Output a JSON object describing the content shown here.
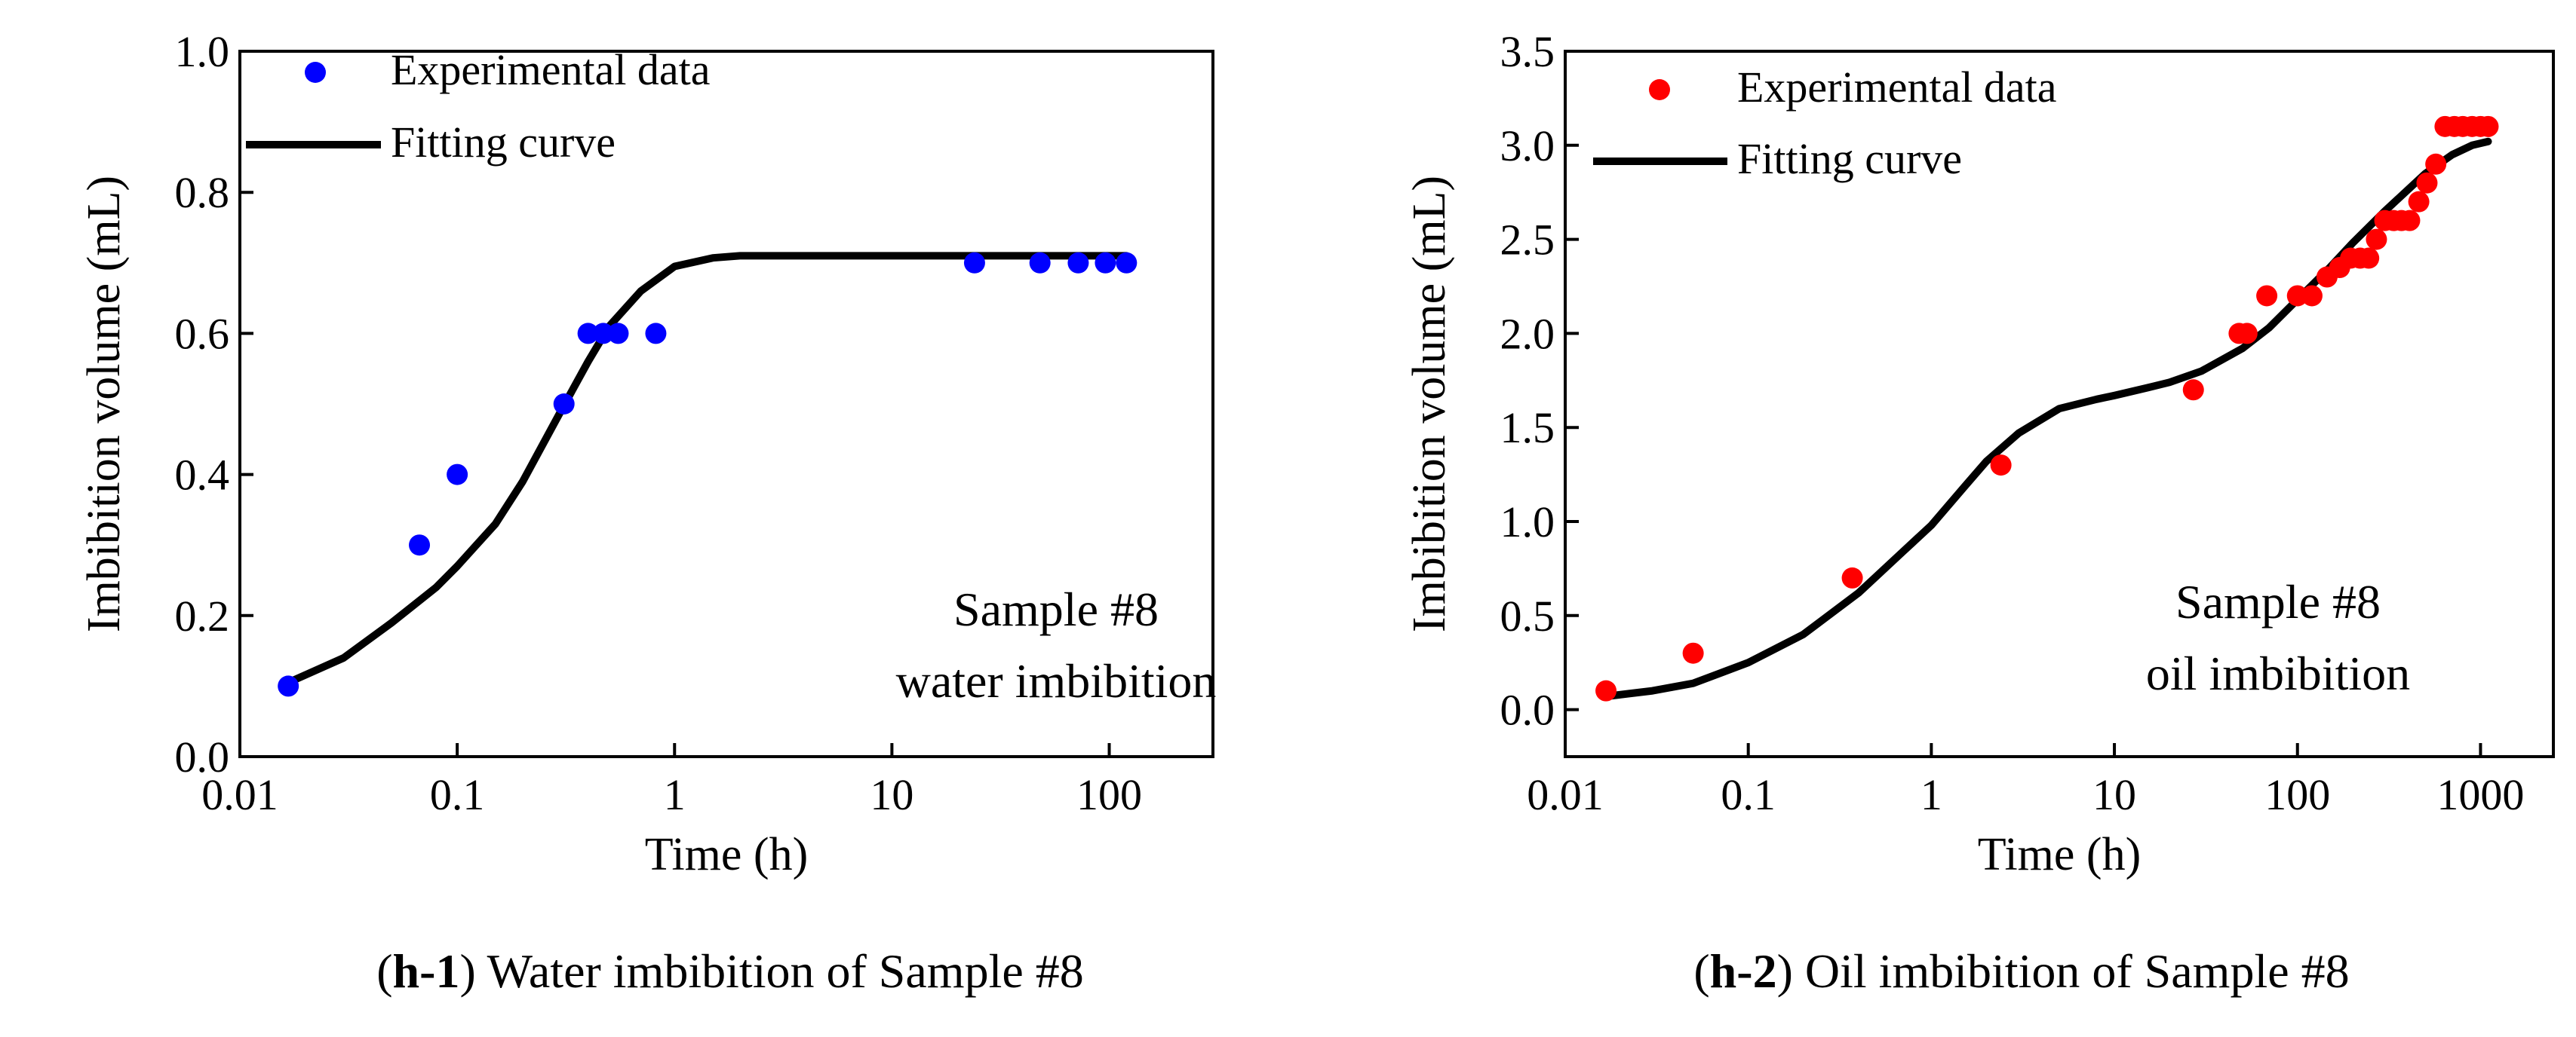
{
  "chart_data": [
    {
      "id": "h1",
      "type": "scatter",
      "caption": {
        "bold": "h-1",
        "open": "(",
        "rest": ") Water imbibition of Sample #8"
      },
      "xlabel": "Time (h)",
      "ylabel": "Imbibition volume (mL)",
      "xscale": "log",
      "xlim": [
        0.01,
        300
      ],
      "ylim": [
        0,
        1.0
      ],
      "xticks": [
        0.01,
        0.1,
        1,
        10,
        100
      ],
      "xtick_labels": [
        "0.01",
        "0.1",
        "1",
        "10",
        "100"
      ],
      "yticks": [
        0,
        0.2,
        0.4,
        0.6,
        0.8,
        1.0
      ],
      "ytick_labels": [
        "0.0",
        "0.2",
        "0.4",
        "0.6",
        "0.8",
        "1.0"
      ],
      "legend": [
        {
          "label": "Experimental data",
          "kind": "marker"
        },
        {
          "label": "Fitting curve",
          "kind": "line"
        }
      ],
      "legend_position": "top-left",
      "annotation": [
        "Sample #8",
        "water imbibition"
      ],
      "marker_color": "#0000ff",
      "line_color": "#000000",
      "series": [
        {
          "name": "Experimental data",
          "x": [
            0.0167,
            0.067,
            0.1,
            0.31,
            0.4,
            0.47,
            0.55,
            0.82,
            24,
            48,
            72,
            96,
            120
          ],
          "y": [
            0.1,
            0.3,
            0.4,
            0.5,
            0.6,
            0.6,
            0.6,
            0.6,
            0.7,
            0.7,
            0.7,
            0.7,
            0.7
          ]
        },
        {
          "name": "Fitting curve",
          "x": [
            0.0167,
            0.03,
            0.05,
            0.08,
            0.1,
            0.15,
            0.2,
            0.3,
            0.4,
            0.5,
            0.7,
            1.0,
            1.5,
            2,
            3,
            5,
            10,
            20,
            50,
            120
          ],
          "y": [
            0.105,
            0.14,
            0.19,
            0.24,
            0.27,
            0.33,
            0.39,
            0.49,
            0.56,
            0.61,
            0.66,
            0.695,
            0.707,
            0.71,
            0.71,
            0.71,
            0.71,
            0.71,
            0.71,
            0.71
          ]
        }
      ]
    },
    {
      "id": "h2",
      "type": "scatter",
      "caption": {
        "bold": "h-2",
        "open": "(",
        "rest": ") Oil imbibition of Sample #8"
      },
      "xlabel": "Time (h)",
      "ylabel": "Imbibition volume (mL)",
      "xscale": "log",
      "xlim": [
        0.01,
        2500
      ],
      "ylim": [
        -0.25,
        3.5
      ],
      "xticks": [
        0.01,
        0.1,
        1,
        10,
        100,
        1000
      ],
      "xtick_labels": [
        "0.01",
        "0.1",
        "1",
        "10",
        "100",
        "1000"
      ],
      "yticks": [
        0,
        0.5,
        1.0,
        1.5,
        2.0,
        2.5,
        3.0,
        3.5
      ],
      "ytick_labels": [
        "0.0",
        "0.5",
        "1.0",
        "1.5",
        "2.0",
        "2.5",
        "3.0",
        "3.5"
      ],
      "legend": [
        {
          "label": "Experimental data",
          "kind": "marker"
        },
        {
          "label": "Fitting curve",
          "kind": "line"
        }
      ],
      "legend_position": "top-left",
      "annotation": [
        "Sample #8",
        "oil imbibition"
      ],
      "marker_color": "#ff0000",
      "line_color": "#000000",
      "series": [
        {
          "name": "Experimental data",
          "x": [
            0.0167,
            0.05,
            0.37,
            2.4,
            27,
            48,
            53,
            68,
            100,
            120,
            145,
            170,
            195,
            220,
            245,
            270,
            300,
            335,
            370,
            410,
            460,
            510,
            570,
            640,
            720,
            800,
            900,
            1000,
            1100
          ],
          "y": [
            0.1,
            0.3,
            0.7,
            1.3,
            1.7,
            2.0,
            2.0,
            2.2,
            2.2,
            2.2,
            2.3,
            2.35,
            2.4,
            2.4,
            2.4,
            2.5,
            2.6,
            2.6,
            2.6,
            2.6,
            2.7,
            2.8,
            2.9,
            3.1,
            3.1,
            3.1,
            3.1,
            3.1,
            3.1
          ]
        },
        {
          "name": "Fitting curve",
          "x": [
            0.0167,
            0.03,
            0.05,
            0.1,
            0.2,
            0.4,
            0.7,
            1.0,
            1.5,
            2.0,
            3.0,
            5.0,
            8,
            10,
            15,
            20,
            30,
            50,
            70,
            100,
            150,
            200,
            300,
            500,
            700,
            900,
            1100
          ],
          "y": [
            0.07,
            0.1,
            0.14,
            0.25,
            0.4,
            0.62,
            0.84,
            0.98,
            1.18,
            1.32,
            1.47,
            1.6,
            1.65,
            1.67,
            1.71,
            1.74,
            1.8,
            1.92,
            2.03,
            2.18,
            2.35,
            2.48,
            2.65,
            2.85,
            2.95,
            3.0,
            3.02
          ]
        }
      ]
    }
  ]
}
